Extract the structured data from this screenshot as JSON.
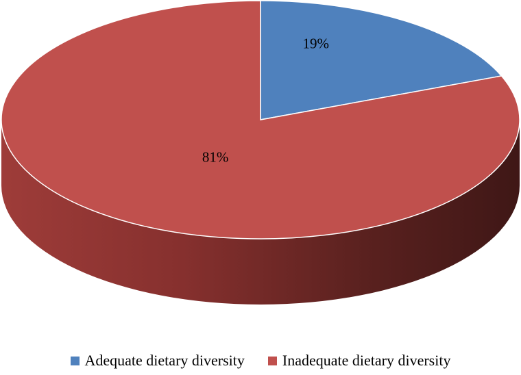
{
  "chart_data": {
    "type": "pie",
    "style": "3d",
    "title": "",
    "categories": [
      "Adequate dietary diversity",
      "Inadequate dietary diversity"
    ],
    "values": [
      19,
      81
    ],
    "labels": [
      "19%",
      "81%"
    ],
    "colors": [
      "#4f81bd",
      "#c0504d"
    ],
    "legend_position": "bottom"
  }
}
